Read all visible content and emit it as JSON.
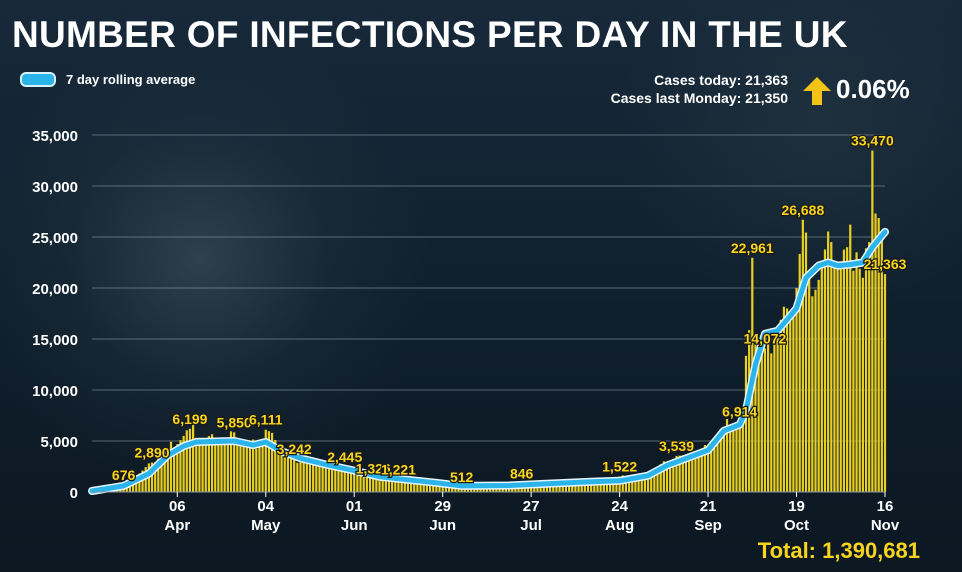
{
  "header": {
    "title": "NUMBER OF INFECTIONS PER DAY IN THE UK",
    "legend_label": "7 day rolling average",
    "cases_today": "Cases today: 21,363",
    "cases_last_monday": "Cases last Monday: 21,350",
    "change_pct": "0.06%",
    "total": "Total: 1,390,681"
  },
  "colors": {
    "bars": "#e9cf1f",
    "line": "#2ab4ea",
    "line_outline": "#e6f6ff",
    "labels": "#f7d51d",
    "arrow": "#f2c318",
    "grid": "#8a98a3",
    "axis_text": "#ffffff"
  },
  "chart_data": {
    "type": "bar",
    "title": "NUMBER OF INFECTIONS PER DAY IN THE UK",
    "ylim": [
      0,
      35000
    ],
    "yticks": [
      0,
      5000,
      10000,
      15000,
      20000,
      25000,
      30000,
      35000
    ],
    "ytick_labels": [
      "0",
      "5,000",
      "10,000",
      "15,000",
      "20,000",
      "25,000",
      "30,000",
      "35,000"
    ],
    "grid": true,
    "legend": "top-left",
    "x_start": "2020-03-10",
    "x_end": "2020-11-16",
    "xticks": [
      {
        "date": "2020-04-06",
        "day": "06",
        "month": "Apr"
      },
      {
        "date": "2020-05-04",
        "day": "04",
        "month": "May"
      },
      {
        "date": "2020-06-01",
        "day": "01",
        "month": "Jun"
      },
      {
        "date": "2020-06-29",
        "day": "29",
        "month": "Jun"
      },
      {
        "date": "2020-07-27",
        "day": "27",
        "month": "Jul"
      },
      {
        "date": "2020-08-24",
        "day": "24",
        "month": "Aug"
      },
      {
        "date": "2020-09-21",
        "day": "21",
        "month": "Sep"
      },
      {
        "date": "2020-10-19",
        "day": "19",
        "month": "Oct"
      },
      {
        "date": "2020-11-16",
        "day": "16",
        "month": "Nov"
      }
    ],
    "bar_anchors": [
      [
        "2020-03-10",
        50
      ],
      [
        "2020-03-16",
        300
      ],
      [
        "2020-03-20",
        676
      ],
      [
        "2020-03-26",
        2100
      ],
      [
        "2020-03-29",
        2890
      ],
      [
        "2020-04-03",
        4300
      ],
      [
        "2020-04-08",
        5500
      ],
      [
        "2020-04-10",
        6199
      ],
      [
        "2020-04-15",
        5200
      ],
      [
        "2020-04-22",
        5300
      ],
      [
        "2020-04-24",
        5850
      ],
      [
        "2020-04-28",
        4800
      ],
      [
        "2020-05-02",
        4700
      ],
      [
        "2020-05-04",
        6111
      ],
      [
        "2020-05-07",
        5100
      ],
      [
        "2020-05-11",
        3900
      ],
      [
        "2020-05-13",
        3242
      ],
      [
        "2020-05-20",
        2800
      ],
      [
        "2020-05-27",
        2200
      ],
      [
        "2020-05-29",
        2445
      ],
      [
        "2020-06-05",
        1500
      ],
      [
        "2020-06-07",
        1326
      ],
      [
        "2020-06-12",
        1250
      ],
      [
        "2020-06-15",
        1221
      ],
      [
        "2020-06-22",
        1000
      ],
      [
        "2020-06-29",
        700
      ],
      [
        "2020-07-05",
        512
      ],
      [
        "2020-07-12",
        600
      ],
      [
        "2020-07-20",
        700
      ],
      [
        "2020-07-24",
        846
      ],
      [
        "2020-08-01",
        800
      ],
      [
        "2020-08-10",
        1050
      ],
      [
        "2020-08-20",
        1150
      ],
      [
        "2020-08-24",
        1522
      ],
      [
        "2020-08-30",
        1400
      ],
      [
        "2020-09-05",
        2400
      ],
      [
        "2020-09-11",
        3539
      ],
      [
        "2020-09-15",
        3200
      ],
      [
        "2020-09-19",
        4000
      ],
      [
        "2020-09-23",
        5000
      ],
      [
        "2020-09-26",
        6400
      ],
      [
        "2020-10-01",
        6914
      ],
      [
        "2020-10-02",
        7000
      ],
      [
        "2020-10-05",
        22961
      ],
      [
        "2020-10-06",
        14500
      ],
      [
        "2020-10-09",
        14072
      ],
      [
        "2020-10-12",
        15200
      ],
      [
        "2020-10-16",
        18000
      ],
      [
        "2020-10-19",
        20000
      ],
      [
        "2020-10-21",
        26688
      ],
      [
        "2020-10-23",
        21000
      ],
      [
        "2020-10-26",
        20800
      ],
      [
        "2020-10-30",
        24500
      ],
      [
        "2020-11-02",
        22000
      ],
      [
        "2020-11-04",
        24000
      ],
      [
        "2020-11-07",
        23500
      ],
      [
        "2020-11-09",
        21000
      ],
      [
        "2020-11-11",
        24500
      ],
      [
        "2020-11-12",
        33470
      ],
      [
        "2020-11-13",
        27301
      ],
      [
        "2020-11-14",
        26860
      ],
      [
        "2020-11-15",
        24957
      ],
      [
        "2020-11-16",
        21363
      ]
    ],
    "rolling_average": [
      [
        "2020-03-10",
        100
      ],
      [
        "2020-03-20",
        600
      ],
      [
        "2020-03-28",
        1800
      ],
      [
        "2020-04-03",
        3600
      ],
      [
        "2020-04-08",
        4500
      ],
      [
        "2020-04-12",
        4900
      ],
      [
        "2020-04-18",
        4950
      ],
      [
        "2020-04-24",
        5000
      ],
      [
        "2020-04-30",
        4600
      ],
      [
        "2020-05-04",
        4900
      ],
      [
        "2020-05-09",
        4000
      ],
      [
        "2020-05-15",
        3300
      ],
      [
        "2020-05-23",
        2700
      ],
      [
        "2020-06-01",
        2100
      ],
      [
        "2020-06-09",
        1500
      ],
      [
        "2020-06-18",
        1200
      ],
      [
        "2020-06-27",
        900
      ],
      [
        "2020-07-05",
        600
      ],
      [
        "2020-07-20",
        640
      ],
      [
        "2020-08-01",
        800
      ],
      [
        "2020-08-15",
        1000
      ],
      [
        "2020-08-24",
        1100
      ],
      [
        "2020-09-02",
        1600
      ],
      [
        "2020-09-08",
        2600
      ],
      [
        "2020-09-15",
        3400
      ],
      [
        "2020-09-21",
        4100
      ],
      [
        "2020-09-26",
        6000
      ],
      [
        "2020-10-01",
        6600
      ],
      [
        "2020-10-03",
        8000
      ],
      [
        "2020-10-06",
        12500
      ],
      [
        "2020-10-09",
        15500
      ],
      [
        "2020-10-13",
        15800
      ],
      [
        "2020-10-19",
        18000
      ],
      [
        "2020-10-22",
        21000
      ],
      [
        "2020-10-26",
        22200
      ],
      [
        "2020-10-29",
        22500
      ],
      [
        "2020-11-01",
        22200
      ],
      [
        "2020-11-05",
        22300
      ],
      [
        "2020-11-09",
        22500
      ],
      [
        "2020-11-12",
        24000
      ],
      [
        "2020-11-16",
        25500
      ]
    ],
    "annotations": [
      {
        "date": "2020-03-20",
        "value": 676,
        "label": "676"
      },
      {
        "date": "2020-03-29",
        "value": 2890,
        "label": "2,890"
      },
      {
        "date": "2020-04-10",
        "value": 6199,
        "label": "6,199"
      },
      {
        "date": "2020-04-24",
        "value": 5850,
        "label": "5,850"
      },
      {
        "date": "2020-05-04",
        "value": 6111,
        "label": "6,111"
      },
      {
        "date": "2020-05-13",
        "value": 3242,
        "label": "3,242"
      },
      {
        "date": "2020-05-29",
        "value": 2445,
        "label": "2,445"
      },
      {
        "date": "2020-06-07",
        "value": 1326,
        "label": "1,326"
      },
      {
        "date": "2020-06-15",
        "value": 1221,
        "label": "1,221"
      },
      {
        "date": "2020-07-05",
        "value": 512,
        "label": "512"
      },
      {
        "date": "2020-07-24",
        "value": 846,
        "label": "846"
      },
      {
        "date": "2020-08-24",
        "value": 1522,
        "label": "1,522"
      },
      {
        "date": "2020-09-11",
        "value": 3539,
        "label": "3,539"
      },
      {
        "date": "2020-10-01",
        "value": 6914,
        "label": "6,914"
      },
      {
        "date": "2020-10-05",
        "value": 22961,
        "label": "22,961"
      },
      {
        "date": "2020-10-09",
        "value": 14072,
        "label": "14,072"
      },
      {
        "date": "2020-10-21",
        "value": 26688,
        "label": "26,688"
      },
      {
        "date": "2020-11-12",
        "value": 33470,
        "label": "33,470"
      },
      {
        "date": "2020-11-16",
        "value": 21363,
        "label": "21,363"
      }
    ]
  }
}
